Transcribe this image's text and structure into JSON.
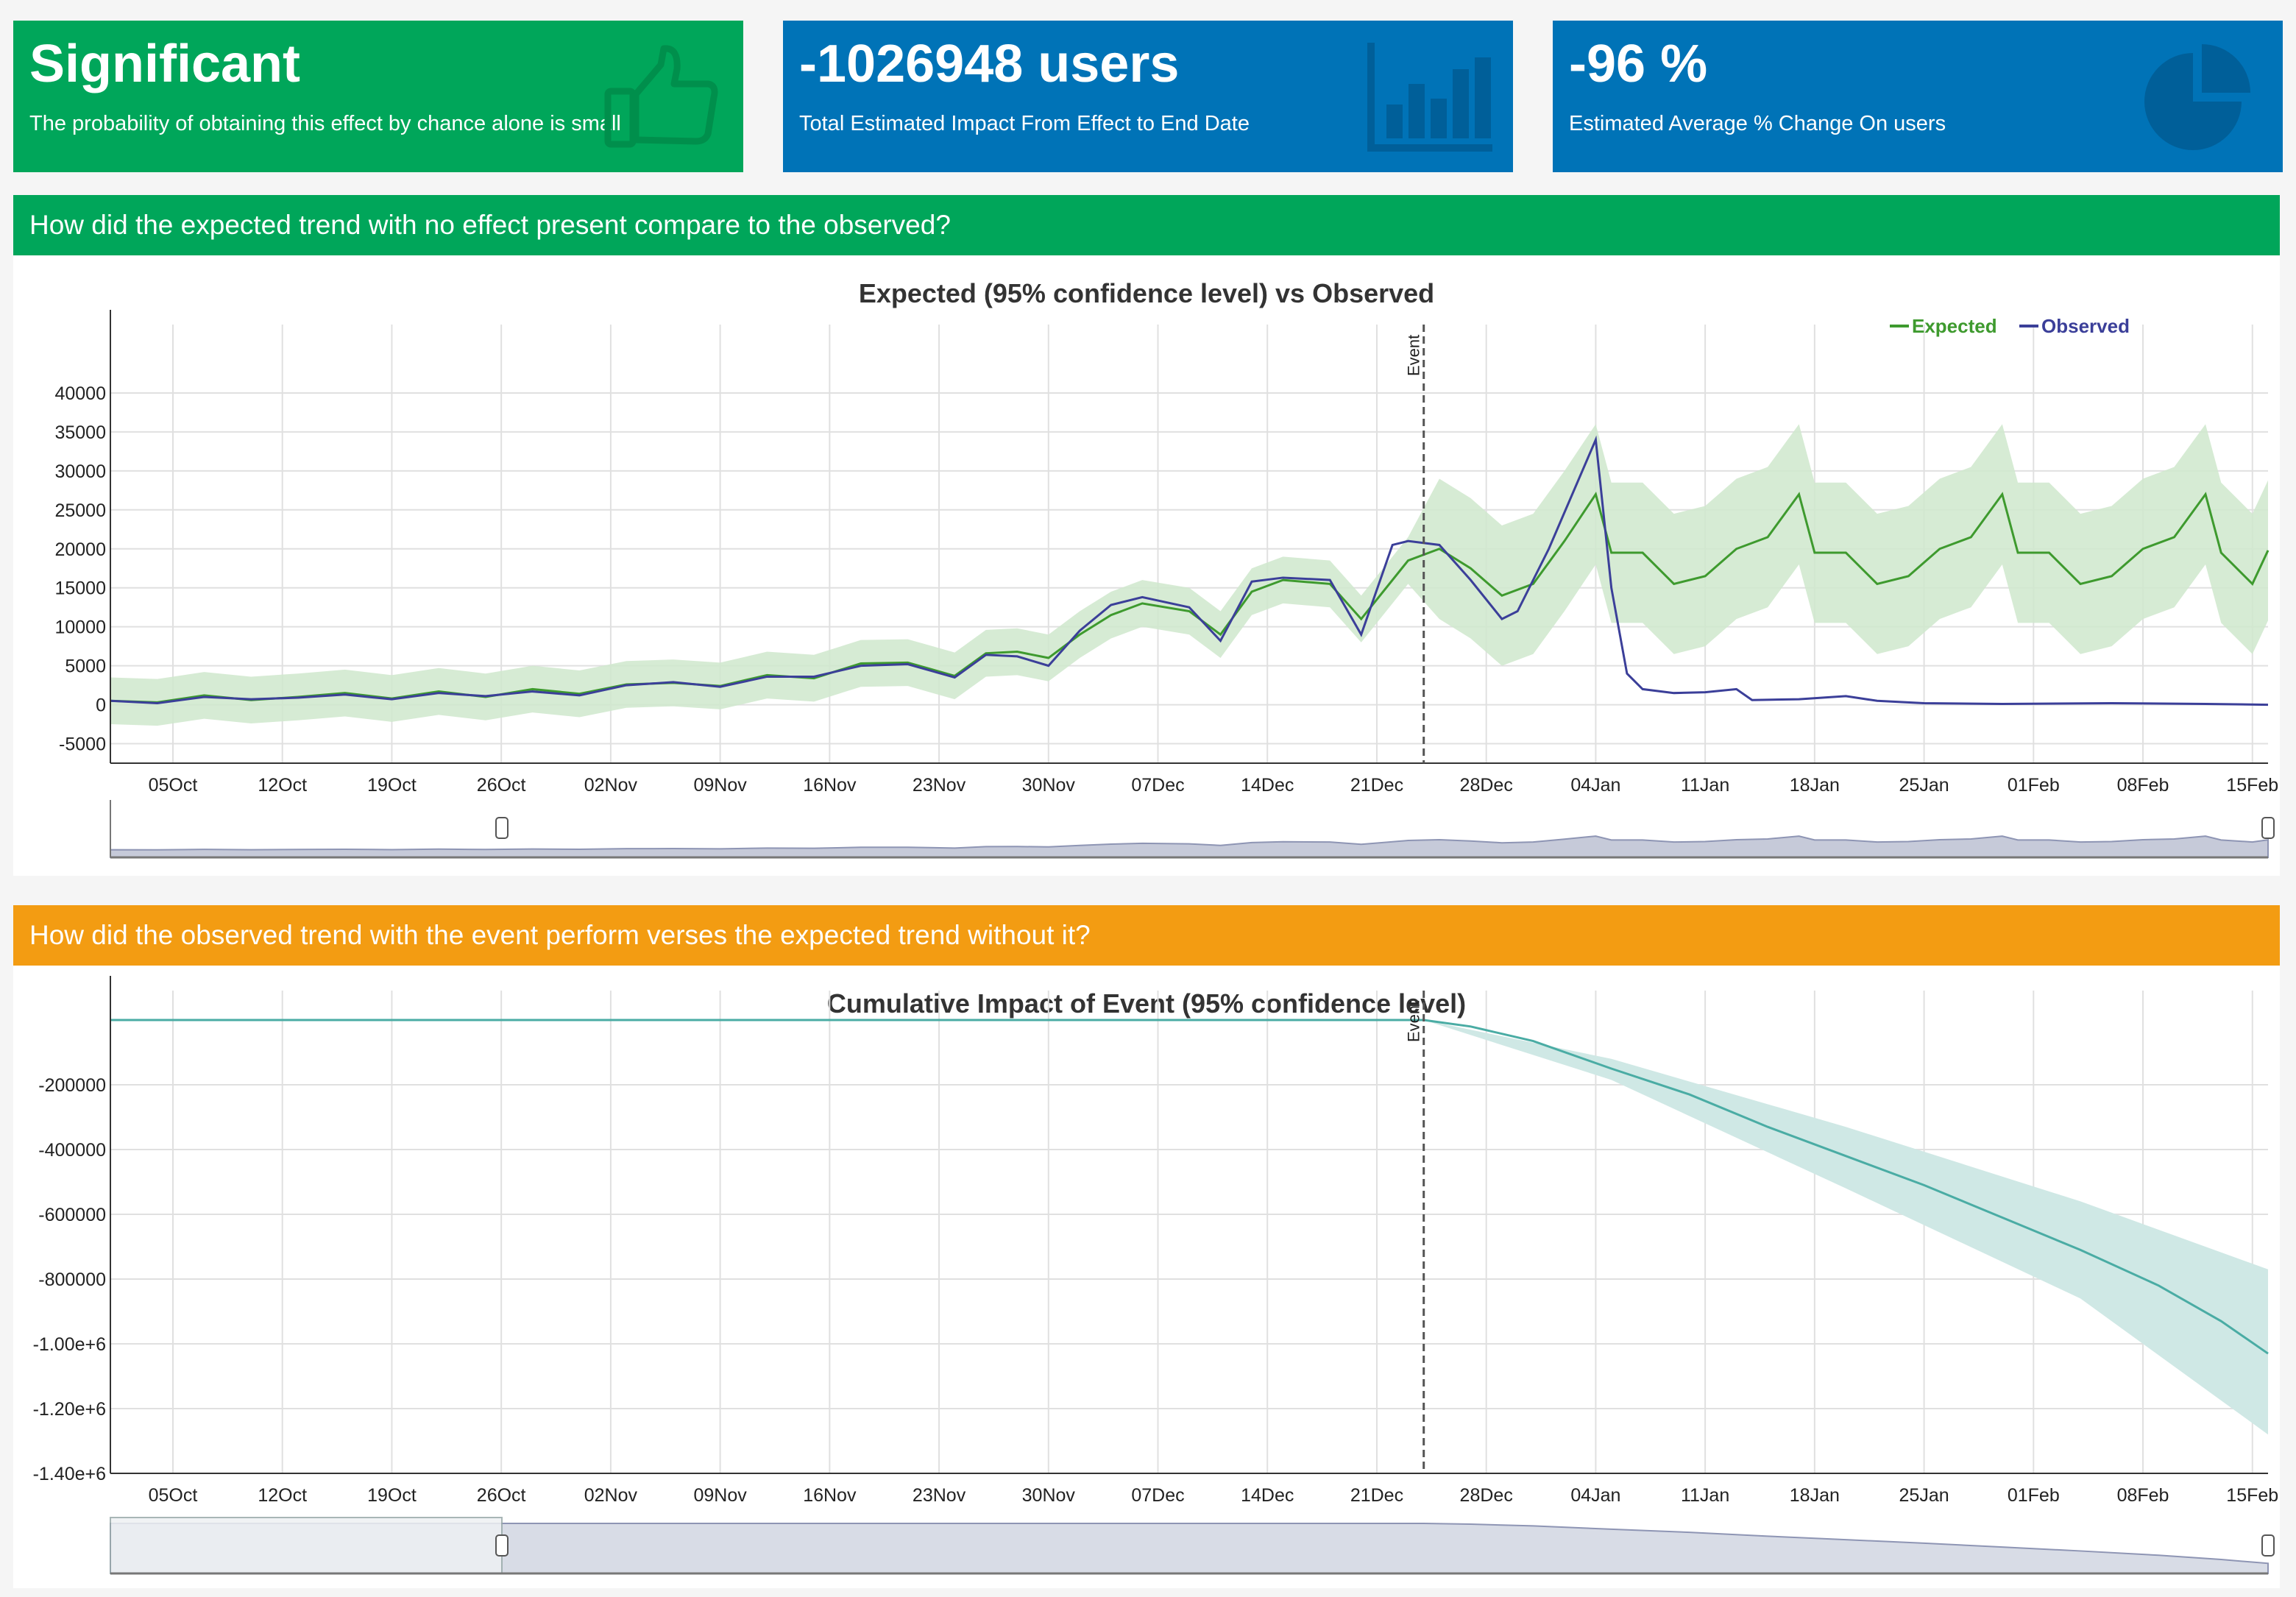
{
  "cards": [
    {
      "title": "Significant",
      "subtitle": "The probability of obtaining this effect by chance alone is small",
      "icon": "thumbs-up-icon",
      "color": "#00a65a"
    },
    {
      "title": "-1026948 users",
      "subtitle": "Total Estimated Impact From Effect to End Date",
      "icon": "bar-chart-icon",
      "color": "#0073b7"
    },
    {
      "title": "-96 %",
      "subtitle": "Estimated Average % Change On users",
      "icon": "pie-chart-icon",
      "color": "#0073b7"
    }
  ],
  "sections": [
    {
      "header": "How did the expected trend with no effect present compare to the observed?",
      "color": "#00a65a"
    },
    {
      "header": "How did the observed trend with the event perform verses the expected trend without it?",
      "color": "#f39c12"
    }
  ],
  "chart_data": [
    {
      "type": "line",
      "title": "Expected (95% confidence level) vs Observed",
      "xlabel": "",
      "ylabel": "",
      "legend": [
        "Expected",
        "Observed"
      ],
      "legend_position": "top-right",
      "colors": {
        "expected": "#3e9a2e",
        "observed": "#3b3f99",
        "band": "#cfe8cc"
      },
      "xlim": [
        "2015-10-01",
        "2016-02-16"
      ],
      "ylim": [
        -7500,
        45000
      ],
      "yticks": [
        -5000,
        0,
        5000,
        10000,
        15000,
        20000,
        25000,
        30000,
        35000,
        40000
      ],
      "xticks": [
        "05Oct",
        "12Oct",
        "19Oct",
        "26Oct",
        "02Nov",
        "09Nov",
        "16Nov",
        "23Nov",
        "30Nov",
        "07Dec",
        "14Dec",
        "21Dec",
        "28Dec",
        "04Jan",
        "11Jan",
        "18Jan",
        "25Jan",
        "01Feb",
        "08Feb",
        "15Feb"
      ],
      "annotation": {
        "label": "Event",
        "x": "2015-12-24"
      },
      "grid": true,
      "series": [
        {
          "name": "Expected",
          "points": [
            [
              "2015-10-01",
              500
            ],
            [
              "2015-10-04",
              300
            ],
            [
              "2015-10-07",
              1200
            ],
            [
              "2015-10-10",
              600
            ],
            [
              "2015-10-13",
              1000
            ],
            [
              "2015-10-16",
              1500
            ],
            [
              "2015-10-19",
              800
            ],
            [
              "2015-10-22",
              1700
            ],
            [
              "2015-10-25",
              1000
            ],
            [
              "2015-10-28",
              2000
            ],
            [
              "2015-10-31",
              1400
            ],
            [
              "2015-11-03",
              2600
            ],
            [
              "2015-11-06",
              2800
            ],
            [
              "2015-11-09",
              2400
            ],
            [
              "2015-11-12",
              3800
            ],
            [
              "2015-11-15",
              3400
            ],
            [
              "2015-11-18",
              5300
            ],
            [
              "2015-11-21",
              5400
            ],
            [
              "2015-11-24",
              3700
            ],
            [
              "2015-11-26",
              6600
            ],
            [
              "2015-11-28",
              6800
            ],
            [
              "2015-11-30",
              6000
            ],
            [
              "2015-12-02",
              9000
            ],
            [
              "2015-12-04",
              11500
            ],
            [
              "2015-12-06",
              13000
            ],
            [
              "2015-12-09",
              12000
            ],
            [
              "2015-12-11",
              9000
            ],
            [
              "2015-12-13",
              14500
            ],
            [
              "2015-12-15",
              16000
            ],
            [
              "2015-12-18",
              15500
            ],
            [
              "2015-12-20",
              11000
            ],
            [
              "2015-12-23",
              18500
            ],
            [
              "2015-12-25",
              20000
            ],
            [
              "2015-12-27",
              17500
            ],
            [
              "2015-12-29",
              14000
            ],
            [
              "2015-12-31",
              15500
            ],
            [
              "2016-01-02",
              21000
            ],
            [
              "2016-01-04",
              27000
            ],
            [
              "2016-01-05",
              19500
            ],
            [
              "2016-01-07",
              19500
            ],
            [
              "2016-01-09",
              15500
            ],
            [
              "2016-01-11",
              16500
            ],
            [
              "2016-01-13",
              20000
            ],
            [
              "2016-01-15",
              21500
            ],
            [
              "2016-01-17",
              27000
            ],
            [
              "2016-01-18",
              19500
            ],
            [
              "2016-01-20",
              19500
            ],
            [
              "2016-01-22",
              15500
            ],
            [
              "2016-01-24",
              16500
            ],
            [
              "2016-01-26",
              20000
            ],
            [
              "2016-01-28",
              21500
            ],
            [
              "2016-01-30",
              27000
            ],
            [
              "2016-01-31",
              19500
            ],
            [
              "2016-02-02",
              19500
            ],
            [
              "2016-02-04",
              15500
            ],
            [
              "2016-02-06",
              16500
            ],
            [
              "2016-02-08",
              20000
            ],
            [
              "2016-02-10",
              21500
            ],
            [
              "2016-02-12",
              27000
            ],
            [
              "2016-02-13",
              19500
            ],
            [
              "2016-02-15",
              15500
            ],
            [
              "2016-02-16",
              19800
            ]
          ]
        },
        {
          "name": "Observed",
          "points": [
            [
              "2015-10-01",
              500
            ],
            [
              "2015-10-04",
              200
            ],
            [
              "2015-10-07",
              1000
            ],
            [
              "2015-10-10",
              700
            ],
            [
              "2015-10-13",
              900
            ],
            [
              "2015-10-16",
              1300
            ],
            [
              "2015-10-19",
              700
            ],
            [
              "2015-10-22",
              1500
            ],
            [
              "2015-10-25",
              1100
            ],
            [
              "2015-10-28",
              1700
            ],
            [
              "2015-10-31",
              1200
            ],
            [
              "2015-11-03",
              2500
            ],
            [
              "2015-11-06",
              2900
            ],
            [
              "2015-11-09",
              2300
            ],
            [
              "2015-11-12",
              3600
            ],
            [
              "2015-11-15",
              3600
            ],
            [
              "2015-11-18",
              5000
            ],
            [
              "2015-11-21",
              5200
            ],
            [
              "2015-11-24",
              3500
            ],
            [
              "2015-11-26",
              6400
            ],
            [
              "2015-11-28",
              6200
            ],
            [
              "2015-11-30",
              5000
            ],
            [
              "2015-12-02",
              9500
            ],
            [
              "2015-12-04",
              12800
            ],
            [
              "2015-12-06",
              13800
            ],
            [
              "2015-12-09",
              12500
            ],
            [
              "2015-12-11",
              8200
            ],
            [
              "2015-12-13",
              15800
            ],
            [
              "2015-12-15",
              16300
            ],
            [
              "2015-12-18",
              16000
            ],
            [
              "2015-12-20",
              9000
            ],
            [
              "2015-12-22",
              20500
            ],
            [
              "2015-12-23",
              21000
            ],
            [
              "2015-12-25",
              20500
            ],
            [
              "2015-12-27",
              16000
            ],
            [
              "2015-12-29",
              11000
            ],
            [
              "2015-12-30",
              12000
            ],
            [
              "2016-01-01",
              20000
            ],
            [
              "2016-01-04",
              34000
            ],
            [
              "2016-01-05",
              15000
            ],
            [
              "2016-01-06",
              4000
            ],
            [
              "2016-01-07",
              2000
            ],
            [
              "2016-01-09",
              1500
            ],
            [
              "2016-01-11",
              1600
            ],
            [
              "2016-01-13",
              2000
            ],
            [
              "2016-01-14",
              600
            ],
            [
              "2016-01-17",
              700
            ],
            [
              "2016-01-20",
              1100
            ],
            [
              "2016-01-22",
              500
            ],
            [
              "2016-01-25",
              200
            ],
            [
              "2016-01-30",
              100
            ],
            [
              "2016-02-06",
              200
            ],
            [
              "2016-02-12",
              100
            ],
            [
              "2016-02-16",
              0
            ]
          ]
        }
      ],
      "confidence_band": {
        "name": "Expected 95% interval",
        "half_width": 3000,
        "post_event_half_width": 9000
      }
    },
    {
      "type": "area",
      "title": "Cumulative Impact of Event (95% confidence level)",
      "xlabel": "",
      "ylabel": "",
      "colors": {
        "line": "#4aaca4",
        "band": "#cfe8e5"
      },
      "xlim": [
        "2015-10-01",
        "2016-02-16"
      ],
      "ylim": [
        -1400000,
        0
      ],
      "yticks": [
        -200000,
        -400000,
        -600000,
        -800000,
        -1000000,
        -1200000,
        -1400000
      ],
      "ytick_labels": [
        "-200000",
        "-400000",
        "-600000",
        "-800000",
        "-1.00e+6",
        "-1.20e+6",
        "-1.40e+6"
      ],
      "xticks": [
        "05Oct",
        "12Oct",
        "19Oct",
        "26Oct",
        "02Nov",
        "09Nov",
        "16Nov",
        "23Nov",
        "30Nov",
        "07Dec",
        "14Dec",
        "21Dec",
        "28Dec",
        "04Jan",
        "11Jan",
        "18Jan",
        "25Jan",
        "01Feb",
        "08Feb",
        "15Feb"
      ],
      "annotation": {
        "label": "Event",
        "x": "2015-12-24"
      },
      "grid": true,
      "series": [
        {
          "name": "Cumulative",
          "points": [
            [
              "2015-10-01",
              0
            ],
            [
              "2015-12-24",
              0
            ],
            [
              "2015-12-27",
              -20000
            ],
            [
              "2015-12-31",
              -65000
            ],
            [
              "2016-01-05",
              -150000
            ],
            [
              "2016-01-10",
              -230000
            ],
            [
              "2016-01-15",
              -330000
            ],
            [
              "2016-01-20",
              -420000
            ],
            [
              "2016-01-25",
              -510000
            ],
            [
              "2016-01-30",
              -610000
            ],
            [
              "2016-02-04",
              -710000
            ],
            [
              "2016-02-09",
              -820000
            ],
            [
              "2016-02-13",
              -930000
            ],
            [
              "2016-02-16",
              -1030000
            ]
          ]
        }
      ],
      "confidence_band": {
        "upper": [
          [
            "2015-12-24",
            0
          ],
          [
            "2016-01-05",
            -120000
          ],
          [
            "2016-01-20",
            -330000
          ],
          [
            "2016-02-04",
            -560000
          ],
          [
            "2016-02-16",
            -770000
          ]
        ],
        "lower": [
          [
            "2015-12-24",
            0
          ],
          [
            "2016-01-05",
            -185000
          ],
          [
            "2016-01-20",
            -520000
          ],
          [
            "2016-02-04",
            -860000
          ],
          [
            "2016-02-16",
            -1280000
          ]
        ]
      }
    }
  ]
}
